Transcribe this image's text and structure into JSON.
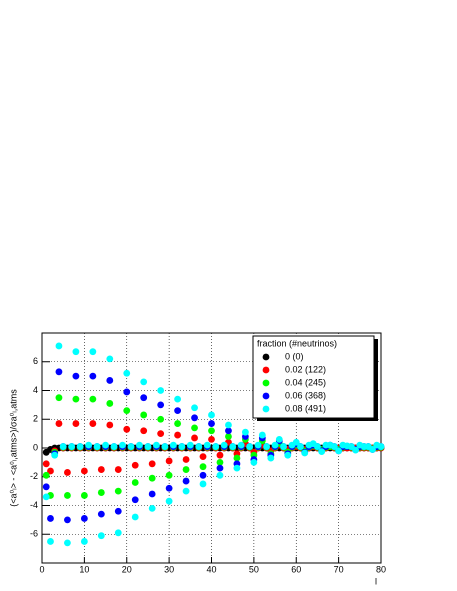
{
  "chart_data": {
    "type": "scatter",
    "y_label": "(<a⁰ₗ> - <a⁰ₗ,atms>)/σa⁰ₗ,atms",
    "x_label": "l",
    "legend_title": "fraction (#neutrinos)",
    "legend": "upper right",
    "grid": true,
    "xlim": [
      0,
      80
    ],
    "xticks": [
      0,
      10,
      20,
      30,
      40,
      50,
      60,
      70,
      80
    ],
    "ylim": [
      -8,
      8
    ],
    "yticks": [
      -6,
      -4,
      -2,
      0,
      2,
      4,
      6
    ],
    "x": [
      1,
      2,
      3,
      4,
      5,
      6,
      7,
      8,
      9,
      10,
      11,
      12,
      13,
      14,
      15,
      16,
      17,
      18,
      19,
      20,
      21,
      22,
      23,
      24,
      25,
      26,
      27,
      28,
      29,
      30,
      31,
      32,
      33,
      34,
      35,
      36,
      37,
      38,
      39,
      40,
      41,
      42,
      43,
      44,
      45,
      46,
      47,
      48,
      49,
      50,
      51,
      52,
      53,
      54,
      55,
      56,
      57,
      58,
      59,
      60,
      61,
      62,
      63,
      64,
      65,
      66,
      67,
      68,
      69,
      70,
      71,
      72,
      73,
      74,
      75,
      76,
      77,
      78,
      79,
      80
    ],
    "series": [
      {
        "name": "0 (0)",
        "color": "#000000",
        "values": [
          -0.3,
          -0.1,
          0,
          0,
          0,
          0,
          0,
          0,
          0,
          0,
          0,
          0,
          0,
          0,
          0,
          0,
          0,
          0,
          0,
          0,
          0,
          0,
          0,
          0,
          0,
          0,
          0,
          0,
          0,
          0,
          0,
          0,
          0,
          0,
          0,
          0,
          0,
          0,
          0,
          0,
          0,
          0,
          0,
          0,
          0,
          0,
          0,
          0,
          0,
          0,
          0,
          0,
          0,
          0,
          0,
          0,
          0,
          0,
          0,
          0,
          0,
          0,
          0,
          0,
          0,
          0,
          0,
          0,
          0,
          0,
          0,
          0,
          0,
          0,
          0,
          0,
          0,
          0,
          0,
          0
        ]
      },
      {
        "name": "0.02 (122)",
        "color": "#ff0000",
        "values": [
          -1.1,
          -1.6,
          -0.2,
          1.7,
          0,
          -1.7,
          0,
          1.7,
          0,
          -1.6,
          0,
          1.7,
          0,
          -1.5,
          0,
          1.6,
          0,
          -1.5,
          0,
          1.3,
          0,
          -1.2,
          0,
          1.2,
          0,
          -1.1,
          0,
          1.0,
          0,
          -0.9,
          0,
          0.9,
          0,
          -0.8,
          0,
          0.7,
          0,
          -0.6,
          0,
          0.6,
          0,
          -0.5,
          0,
          0.4,
          0,
          -0.4,
          0,
          0.3,
          0,
          -0.3,
          0,
          0.2,
          0,
          -0.2,
          0,
          0.2,
          0,
          -0.1,
          0,
          0.1,
          0,
          -0.1,
          0,
          0.1,
          0,
          -0.1,
          0,
          0.1,
          0,
          0,
          0,
          0,
          0,
          0,
          0,
          0,
          0,
          0,
          0,
          0
        ]
      },
      {
        "name": "0.04 (245)",
        "color": "#00ff00",
        "values": [
          -1.9,
          -3.3,
          -0.3,
          3.5,
          0.05,
          -3.3,
          0.05,
          3.4,
          0.05,
          -3.3,
          0.05,
          3.4,
          0.05,
          -3.1,
          0.05,
          3.1,
          0.05,
          -3.0,
          0.05,
          2.6,
          0.05,
          -2.4,
          0.05,
          2.3,
          0.05,
          -2.1,
          0.05,
          2.0,
          0.05,
          -1.9,
          0.05,
          1.7,
          0.05,
          -1.5,
          0.05,
          1.4,
          0.05,
          -1.3,
          0.05,
          1.2,
          0.05,
          -1.0,
          0.05,
          0.8,
          0.05,
          -0.7,
          0.05,
          0.6,
          0.05,
          -0.5,
          0.05,
          0.5,
          0.05,
          -0.4,
          0.05,
          0.3,
          0.05,
          -0.3,
          0.05,
          0.2,
          0.05,
          -0.2,
          0.05,
          0.15,
          0.05,
          -0.1,
          0.05,
          0.1,
          0.05,
          -0.1,
          0.05,
          0.1,
          0.05,
          -0.1,
          0.05,
          0.05,
          0.05,
          -0.05,
          0.05,
          0.05
        ]
      },
      {
        "name": "0.06 (368)",
        "color": "#0000ff",
        "values": [
          -2.7,
          -4.9,
          -0.4,
          5.3,
          0.1,
          -5.0,
          0.1,
          5.0,
          0.1,
          -4.9,
          0.1,
          5.0,
          0.1,
          -4.6,
          0.1,
          4.7,
          0.1,
          -4.4,
          0.1,
          3.9,
          0.1,
          -3.6,
          0.1,
          3.5,
          0.1,
          -3.2,
          0.1,
          3.0,
          0.1,
          -2.8,
          0.1,
          2.6,
          0.1,
          -2.3,
          0.1,
          2.1,
          0.1,
          -1.9,
          0.1,
          1.7,
          0.1,
          -1.4,
          0.1,
          1.2,
          0.1,
          -1.1,
          0.1,
          0.8,
          0.1,
          -0.8,
          0.1,
          0.7,
          0.1,
          -0.5,
          0.1,
          0.5,
          0.1,
          -0.4,
          0.1,
          0.3,
          0.1,
          -0.3,
          0.1,
          0.2,
          0.1,
          -0.2,
          0.1,
          0.2,
          0.1,
          -0.2,
          0.1,
          0.1,
          0.1,
          -0.1,
          0.1,
          0.1,
          0.1,
          -0.1,
          0.1,
          0.1
        ]
      },
      {
        "name": "0.08 (491)",
        "color": "#00ffff",
        "values": [
          -3.4,
          -6.5,
          -0.5,
          7.1,
          0.1,
          -6.6,
          0.1,
          6.7,
          0.1,
          -6.5,
          0.2,
          6.7,
          0.1,
          -6.1,
          0.2,
          6.2,
          0.1,
          -5.9,
          0.2,
          5.2,
          0.1,
          -4.8,
          0.2,
          4.6,
          0.1,
          -4.2,
          0.2,
          4.0,
          0.1,
          -3.7,
          0.2,
          3.4,
          0.1,
          -3.0,
          0.2,
          2.8,
          0.1,
          -2.5,
          0.2,
          2.3,
          0.1,
          -1.9,
          0.2,
          1.6,
          0.1,
          -1.4,
          0.2,
          1.1,
          0.1,
          -1.0,
          0.2,
          0.9,
          0.1,
          -0.7,
          0.2,
          0.6,
          0.1,
          -0.5,
          0.2,
          0.4,
          0.1,
          -0.35,
          0.2,
          0.3,
          0.1,
          -0.25,
          0.2,
          0.2,
          0.1,
          -0.2,
          0.2,
          0.15,
          0.1,
          -0.15,
          0.2,
          0.1,
          0.1,
          -0.1,
          0.2,
          0.1
        ]
      }
    ]
  }
}
